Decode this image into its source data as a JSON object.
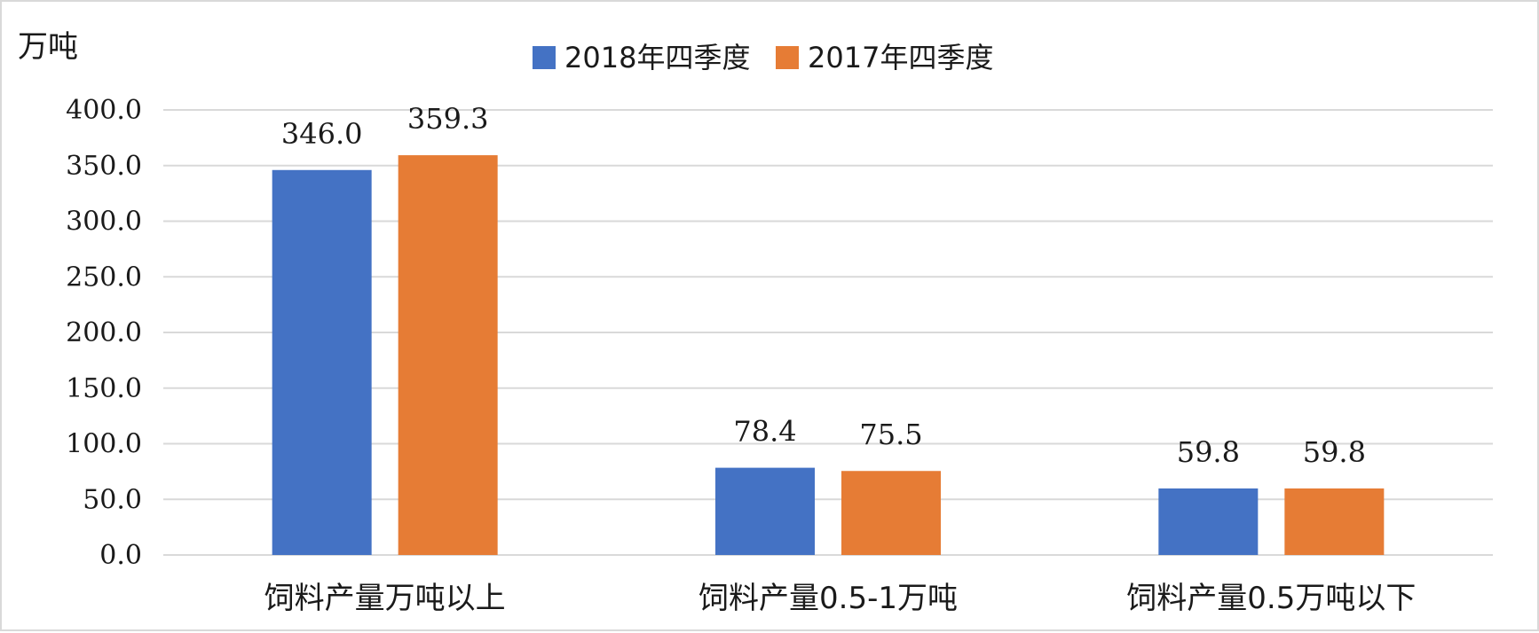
{
  "chart_data": {
    "type": "bar",
    "unit_label": "万吨",
    "categories": [
      "饲料产量万吨以上",
      "饲料产量0.5-1万吨",
      "饲料产量0.5万吨以下"
    ],
    "series": [
      {
        "name": "2018年四季度",
        "color": "#4472c4",
        "values": [
          346.0,
          78.4,
          59.8
        ]
      },
      {
        "name": "2017年四季度",
        "color": "#e67c35",
        "values": [
          359.3,
          75.5,
          59.8
        ]
      }
    ],
    "ylim": [
      0,
      400
    ],
    "yticks": [
      "0.0",
      "50.0",
      "100.0",
      "150.0",
      "200.0",
      "250.0",
      "300.0",
      "350.0",
      "400.0"
    ],
    "data_labels": [
      [
        "346.0",
        "78.4",
        "59.8"
      ],
      [
        "359.3",
        "75.5",
        "59.8"
      ]
    ],
    "grid": true,
    "legend": "top-center"
  }
}
